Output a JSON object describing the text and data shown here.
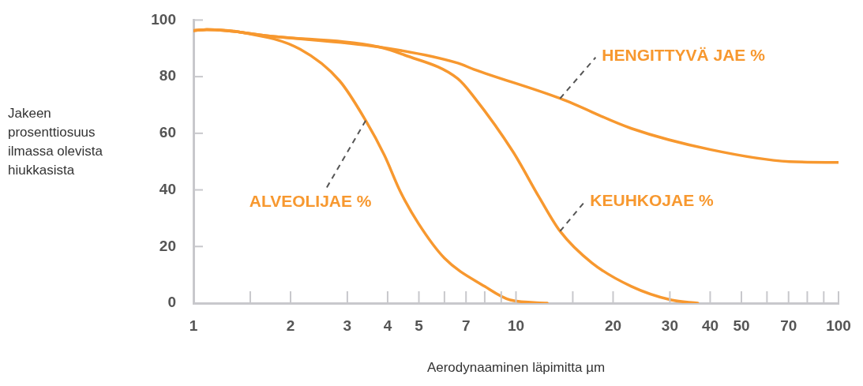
{
  "chart_data": {
    "type": "line",
    "xlabel": "Aerodynaaminen läpimitta µm",
    "ylabel": "Jakeen prosenttiosuus ilmassa olevista hiukkasista",
    "log": "x",
    "grid": false,
    "xlim": [
      1,
      100
    ],
    "xticks": [
      1,
      {
        "value": 1.5,
        "label": null
      },
      2,
      3,
      4,
      5,
      {
        "value": 6,
        "label": null
      },
      7,
      {
        "value": 8,
        "label": null
      },
      {
        "value": 9,
        "label": null
      },
      10,
      {
        "value": 15,
        "label": null
      },
      20,
      30,
      40,
      50,
      {
        "value": 60,
        "label": null
      },
      70,
      {
        "value": 80,
        "label": null
      },
      {
        "value": 90,
        "label": null
      },
      100
    ],
    "ylim": [
      0,
      100
    ],
    "yticks": [
      0,
      20,
      40,
      60,
      80,
      100
    ],
    "series": [
      {
        "name": "HENGITTYVÄ JAE %",
        "color": "#f7982f",
        "x": [
          1,
          1.1,
          1.78,
          3.76,
          6.6,
          7.4,
          13.7,
          22.8,
          40.2,
          70.4,
          100
        ],
        "values": [
          96.3,
          96.6,
          94.2,
          90.5,
          84.8,
          82.6,
          72.3,
          61.7,
          54.2,
          50,
          49.7
        ]
      },
      {
        "name": "KEUHKOJAE %",
        "color": "#f7982f",
        "x": [
          1,
          1.1,
          1.78,
          3.76,
          4.5,
          6.6,
          7.4,
          9.8,
          11.8,
          13.7,
          17.2,
          22.8,
          30.3,
          36.6
        ],
        "values": [
          96.3,
          96.6,
          94.2,
          90.5,
          87.7,
          79.3,
          72.9,
          53.4,
          37.4,
          25.4,
          14.2,
          5.9,
          1.1,
          0
        ]
      },
      {
        "name": "ALVEOLIJAE %",
        "color": "#f7982f",
        "x": [
          1,
          1.1,
          1.42,
          2.14,
          2.84,
          3.42,
          3.91,
          4.38,
          4.98,
          6.0,
          8.0,
          9.6,
          12.5
        ],
        "values": [
          96.3,
          96.6,
          95.6,
          89.7,
          78.5,
          64.5,
          52.2,
          39.4,
          28.2,
          15.9,
          5.9,
          1.1,
          0
        ]
      }
    ]
  }
}
